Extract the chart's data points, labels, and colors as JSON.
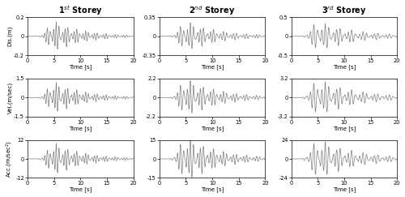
{
  "col_titles": [
    "1$^{st}$ Storey",
    "2$^{nd}$ Storey",
    "3$^{rd}$ Storey"
  ],
  "row_ylabels": [
    "Dis.(m)",
    "Vel.(m/sec)",
    "Acc.(m/sec$^2$)"
  ],
  "xlabel": "Time [s]",
  "xlim": [
    0,
    20
  ],
  "ylims": [
    [
      [
        -0.2,
        0.2
      ],
      [
        -0.35,
        0.35
      ],
      [
        -0.5,
        0.5
      ]
    ],
    [
      [
        -1.5,
        1.5
      ],
      [
        -2.2,
        2.2
      ],
      [
        -3.2,
        3.2
      ]
    ],
    [
      [
        -12,
        12
      ],
      [
        -15,
        15
      ],
      [
        -24,
        24
      ]
    ]
  ],
  "yticks": [
    [
      [
        -0.2,
        0,
        0.2
      ],
      [
        -0.35,
        0,
        0.35
      ],
      [
        -0.5,
        0,
        0.5
      ]
    ],
    [
      [
        -1.5,
        0,
        1.5
      ],
      [
        -2.2,
        0,
        2.2
      ],
      [
        -3.2,
        0,
        3.2
      ]
    ],
    [
      [
        -12,
        0,
        12
      ],
      [
        -15,
        0,
        15
      ],
      [
        -24,
        0,
        24
      ]
    ]
  ],
  "xticks": [
    0,
    5,
    10,
    15,
    20
  ],
  "line_color": "#7f7f7f",
  "line_width": 0.5,
  "fig_width": 5.0,
  "fig_height": 2.43,
  "dpi": 100,
  "title_fontsize": 7.0,
  "label_fontsize": 5.0,
  "tick_fontsize": 4.8
}
